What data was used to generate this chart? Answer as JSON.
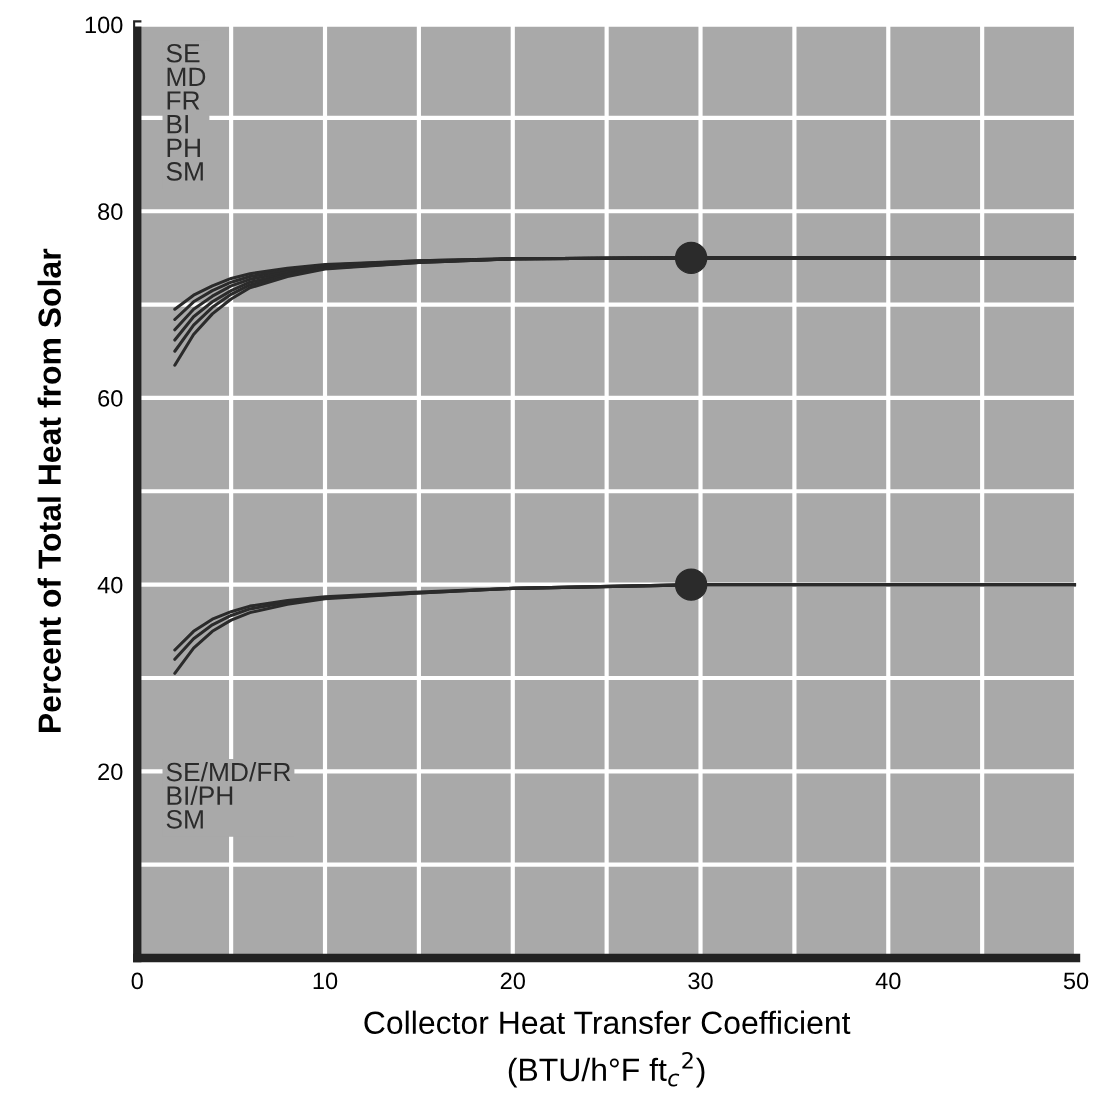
{
  "chart_data": {
    "type": "line",
    "xlabel": "Collector Heat Transfer Coefficient\n(BTU/h°F ft$_{c}$$^{2}$)",
    "ylabel": "Percent of Total Heat from Solar",
    "x": [
      2,
      3,
      4,
      5,
      6,
      8,
      10,
      15,
      20,
      30,
      40,
      50
    ],
    "series": [
      {
        "color": "#2b2b2b",
        "values": [
          69.5,
          71,
          72,
          72.8,
          73.3,
          73.9,
          74.3,
          74.7,
          74.9,
          75,
          75,
          75
        ]
      },
      {
        "color": "#2b2b2b",
        "values": [
          68.4,
          70.3,
          71.5,
          72.4,
          73,
          73.7,
          74.2,
          74.7,
          74.9,
          75,
          75,
          75
        ]
      },
      {
        "color": "#2b2b2b",
        "values": [
          67.3,
          69.5,
          70.9,
          72,
          72.7,
          73.5,
          74.1,
          74.6,
          74.9,
          75,
          75,
          75
        ]
      },
      {
        "color": "#2b2b2b",
        "values": [
          66.2,
          68.7,
          70.3,
          71.5,
          72.4,
          73.3,
          74,
          74.6,
          74.9,
          75,
          75,
          75
        ]
      },
      {
        "color": "#2b2b2b",
        "values": [
          65,
          67.8,
          69.7,
          71.1,
          72.1,
          73.2,
          73.9,
          74.5,
          74.9,
          75,
          75,
          75
        ]
      },
      {
        "color": "#2b2b2b",
        "values": [
          63.5,
          66.8,
          69,
          70.6,
          71.8,
          73,
          73.8,
          74.5,
          74.9,
          75,
          75,
          75
        ]
      },
      {
        "color": "#2b2b2b",
        "values": [
          33,
          35,
          36.3,
          37.1,
          37.7,
          38.3,
          38.7,
          39.2,
          39.6,
          40,
          40,
          40
        ]
      },
      {
        "color": "#2b2b2b",
        "values": [
          32,
          34.2,
          35.7,
          36.7,
          37.4,
          38.1,
          38.6,
          39.1,
          39.6,
          40,
          40,
          40
        ]
      },
      {
        "color": "#2b2b2b",
        "values": [
          30.5,
          33.2,
          35,
          36.2,
          37,
          37.9,
          38.5,
          39.1,
          39.6,
          40,
          40,
          40
        ]
      },
      {
        "type": "scatter",
        "marker": "circle",
        "color": "#2b2b2b",
        "x": [
          29.5,
          29.5
        ],
        "values": [
          75,
          40
        ]
      }
    ],
    "annotations": [
      "SE\nMD\nFR\nBI\nPH\nSM",
      "SE/MD/FR\nBI/PH\nSM"
    ],
    "xlim": [
      0,
      50
    ],
    "xticks": [
      0,
      {
        "value": 5,
        "label": null
      },
      10,
      {
        "value": 15,
        "label": null
      },
      20,
      {
        "value": 25,
        "label": null
      },
      30,
      {
        "value": 35,
        "label": null
      },
      40,
      {
        "value": 45,
        "label": null
      },
      50
    ],
    "ylim": [
      0,
      100
    ],
    "yticks": [
      {
        "value": 10,
        "label": null
      },
      20,
      {
        "value": 30,
        "label": null
      },
      40,
      {
        "value": 50,
        "label": null
      },
      60,
      {
        "value": 70,
        "label": null
      },
      80,
      {
        "value": 90,
        "label": null
      },
      100
    ],
    "grid": true,
    "line_style": "solid",
    "marker": "none"
  }
}
